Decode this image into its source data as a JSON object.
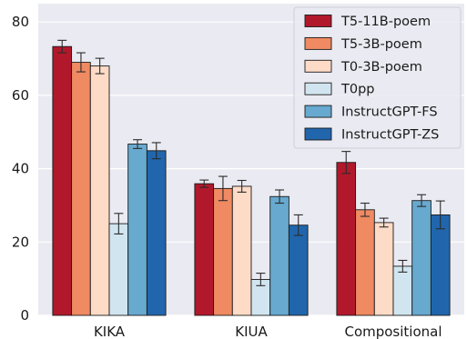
{
  "chart_data": {
    "type": "bar",
    "title": "",
    "xlabel": "",
    "ylabel": "",
    "categories": [
      "KIKA",
      "KIUA",
      "Compositional"
    ],
    "ylim": [
      0,
      85
    ],
    "yticks": [
      0,
      20,
      40,
      60,
      80
    ],
    "grid": true,
    "legend_position": "top-right",
    "background": "#eaeaf2",
    "series": [
      {
        "name": "T5-11B-poem",
        "color": "#b2182b",
        "values": [
          73.3,
          35.9,
          41.7
        ],
        "errors": [
          1.7,
          1.0,
          3.0
        ]
      },
      {
        "name": "T5-3B-poem",
        "color": "#ef8a62",
        "values": [
          69.0,
          34.6,
          28.8
        ],
        "errors": [
          2.6,
          3.3,
          1.8
        ]
      },
      {
        "name": "T0-3B-poem",
        "color": "#fddbc7",
        "values": [
          68.0,
          35.2,
          25.3
        ],
        "errors": [
          2.1,
          1.6,
          1.2
        ]
      },
      {
        "name": "T0pp",
        "color": "#d1e5f0",
        "values": [
          25.0,
          9.8,
          13.4
        ],
        "errors": [
          2.8,
          1.7,
          1.6
        ]
      },
      {
        "name": "InstructGPT-FS",
        "color": "#67a9cf",
        "values": [
          46.7,
          32.4,
          31.3
        ],
        "errors": [
          1.2,
          1.8,
          1.6
        ]
      },
      {
        "name": "InstructGPT-ZS",
        "color": "#2166ac",
        "values": [
          44.9,
          24.6,
          27.4
        ],
        "errors": [
          2.2,
          2.8,
          3.8
        ]
      }
    ]
  }
}
